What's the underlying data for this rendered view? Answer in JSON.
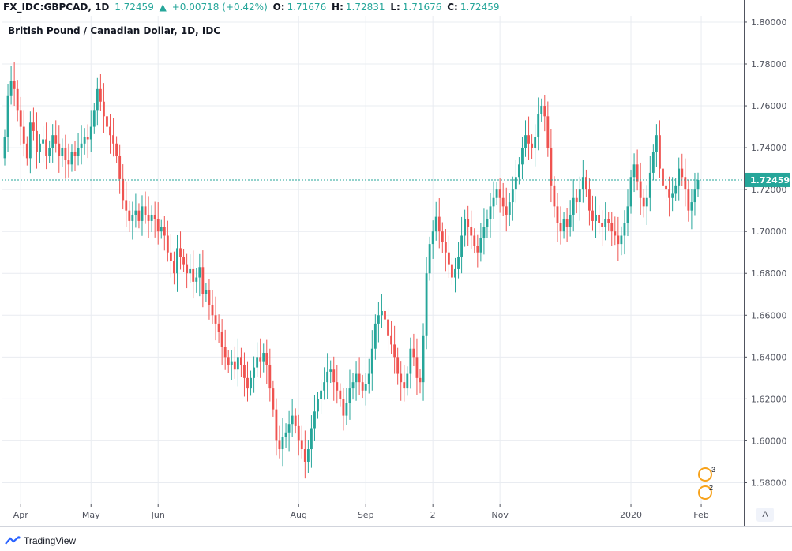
{
  "header": {
    "symbol": "FX_IDC:GBPCAD, 1D",
    "last": "1.72459",
    "arrow": "▲",
    "change": "+0.00718 (+0.42%)",
    "o_label": "O:",
    "o_value": "1.71676",
    "h_label": "H:",
    "h_value": "1.72831",
    "l_label": "L:",
    "l_value": "1.71676",
    "c_label": "C:",
    "c_value": "1.72459"
  },
  "chart_data": {
    "type": "candlestick",
    "title": "British Pound / Canadian Dollar, 1D, IDC",
    "ylim": [
      1.57,
      1.803
    ],
    "y_ticks": [
      "1.80000",
      "1.78000",
      "1.76000",
      "1.74000",
      "1.72000",
      "1.70000",
      "1.68000",
      "1.66000",
      "1.64000",
      "1.62000",
      "1.60000",
      "1.58000"
    ],
    "x_ticks": [
      {
        "label": "Apr",
        "i": 5
      },
      {
        "label": "May",
        "i": 27
      },
      {
        "label": "Jun",
        "i": 48
      },
      {
        "label": "Aug",
        "i": 92
      },
      {
        "label": "Sep",
        "i": 113
      },
      {
        "label": "2",
        "i": 134
      },
      {
        "label": "Nov",
        "i": 155
      },
      {
        "label": "2020",
        "i": 196
      },
      {
        "label": "Feb",
        "i": 218
      }
    ],
    "last_price": 1.72459,
    "last_price_label": "1.72459",
    "colors": {
      "up": "#26a69a",
      "down": "#ef5350",
      "grid": "#e9ecf1",
      "axis": "#50535e",
      "price_line": "#26a69a"
    },
    "close": [
      1.745,
      1.765,
      1.772,
      1.768,
      1.758,
      1.75,
      1.742,
      1.735,
      1.752,
      1.748,
      1.738,
      1.742,
      1.744,
      1.736,
      1.74,
      1.746,
      1.742,
      1.736,
      1.74,
      1.734,
      1.732,
      1.738,
      1.736,
      1.74,
      1.742,
      1.745,
      1.744,
      1.75,
      1.758,
      1.768,
      1.762,
      1.755,
      1.75,
      1.746,
      1.742,
      1.736,
      1.725,
      1.715,
      1.71,
      1.705,
      1.708,
      1.71,
      1.705,
      1.712,
      1.708,
      1.705,
      1.708,
      1.706,
      1.7,
      1.702,
      1.698,
      1.69,
      1.686,
      1.68,
      1.692,
      1.688,
      1.684,
      1.68,
      1.682,
      1.676,
      1.678,
      1.683,
      1.67,
      1.672,
      1.665,
      1.66,
      1.656,
      1.652,
      1.645,
      1.64,
      1.636,
      1.638,
      1.634,
      1.64,
      1.636,
      1.63,
      1.625,
      1.63,
      1.635,
      1.64,
      1.638,
      1.642,
      1.636,
      1.625,
      1.615,
      1.6,
      1.596,
      1.602,
      1.604,
      1.608,
      1.612,
      1.607,
      1.6,
      1.596,
      1.59,
      1.596,
      1.606,
      1.614,
      1.62,
      1.624,
      1.628,
      1.633,
      1.634,
      1.628,
      1.624,
      1.62,
      1.612,
      1.618,
      1.625,
      1.628,
      1.632,
      1.628,
      1.624,
      1.627,
      1.632,
      1.644,
      1.656,
      1.66,
      1.662,
      1.658,
      1.65,
      1.646,
      1.64,
      1.632,
      1.628,
      1.625,
      1.632,
      1.644,
      1.64,
      1.63,
      1.628,
      1.65,
      1.68,
      1.694,
      1.7,
      1.707,
      1.7,
      1.695,
      1.69,
      1.684,
      1.678,
      1.682,
      1.688,
      1.698,
      1.706,
      1.702,
      1.698,
      1.693,
      1.69,
      1.697,
      1.702,
      1.706,
      1.712,
      1.716,
      1.72,
      1.716,
      1.712,
      1.708,
      1.714,
      1.72,
      1.726,
      1.732,
      1.74,
      1.746,
      1.742,
      1.74,
      1.745,
      1.756,
      1.76,
      1.755,
      1.74,
      1.722,
      1.712,
      1.704,
      1.7,
      1.706,
      1.702,
      1.708,
      1.716,
      1.714,
      1.72,
      1.726,
      1.72,
      1.71,
      1.705,
      1.708,
      1.704,
      1.702,
      1.706,
      1.704,
      1.7,
      1.698,
      1.694,
      1.698,
      1.704,
      1.712,
      1.726,
      1.732,
      1.724,
      1.716,
      1.712,
      1.716,
      1.728,
      1.738,
      1.746,
      1.73,
      1.722,
      1.72,
      1.716,
      1.718,
      1.722,
      1.73,
      1.726,
      1.72,
      1.71,
      1.714,
      1.72,
      1.72459
    ]
  },
  "widgets": {
    "event_badge_1": "3",
    "event_badge_2": "2",
    "auto_label": "A"
  },
  "footer": {
    "brand": "TradingView"
  }
}
